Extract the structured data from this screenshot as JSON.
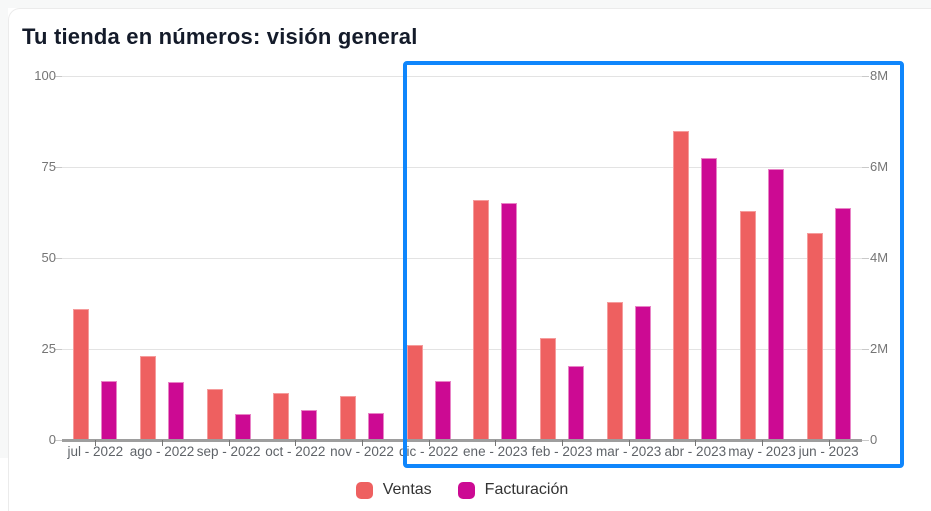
{
  "page": {
    "title": "Tu tienda en números: visión general"
  },
  "chart_data": {
    "type": "bar",
    "title": "Tu tienda en números: visión general",
    "categories": [
      "jul - 2022",
      "ago - 2022",
      "sep - 2022",
      "oct - 2022",
      "nov - 2022",
      "dic - 2022",
      "ene - 2023",
      "feb - 2023",
      "mar - 2023",
      "abr - 2023",
      "may - 2023",
      "jun - 2023"
    ],
    "series": [
      {
        "name": "Ventas",
        "axis": "left",
        "color": "#ee6060",
        "edge_color": "#f59c9c",
        "values": [
          36,
          23,
          14,
          13,
          12,
          26,
          66,
          28,
          38,
          85,
          63,
          57
        ]
      },
      {
        "name": "Facturación",
        "axis": "right",
        "color": "#cc0a93",
        "edge_color": "#e884c6",
        "values": [
          1.3,
          1.28,
          0.57,
          0.66,
          0.6,
          1.3,
          5.2,
          1.62,
          2.95,
          6.2,
          5.95,
          5.1
        ]
      }
    ],
    "left_axis": {
      "ticks": [
        "0",
        "25",
        "50",
        "75",
        "100"
      ],
      "min": 0,
      "max": 100
    },
    "right_axis": {
      "ticks": [
        "0",
        "2M",
        "4M",
        "6M",
        "8M"
      ],
      "min": 0,
      "max": 8,
      "unit": "M"
    },
    "grid": true,
    "legend_position": "bottom",
    "highlight": {
      "from_category": "dic - 2022",
      "to_category": "jun - 2023",
      "from_index": 5,
      "to_index": 11,
      "color": "#0f86fc"
    }
  }
}
